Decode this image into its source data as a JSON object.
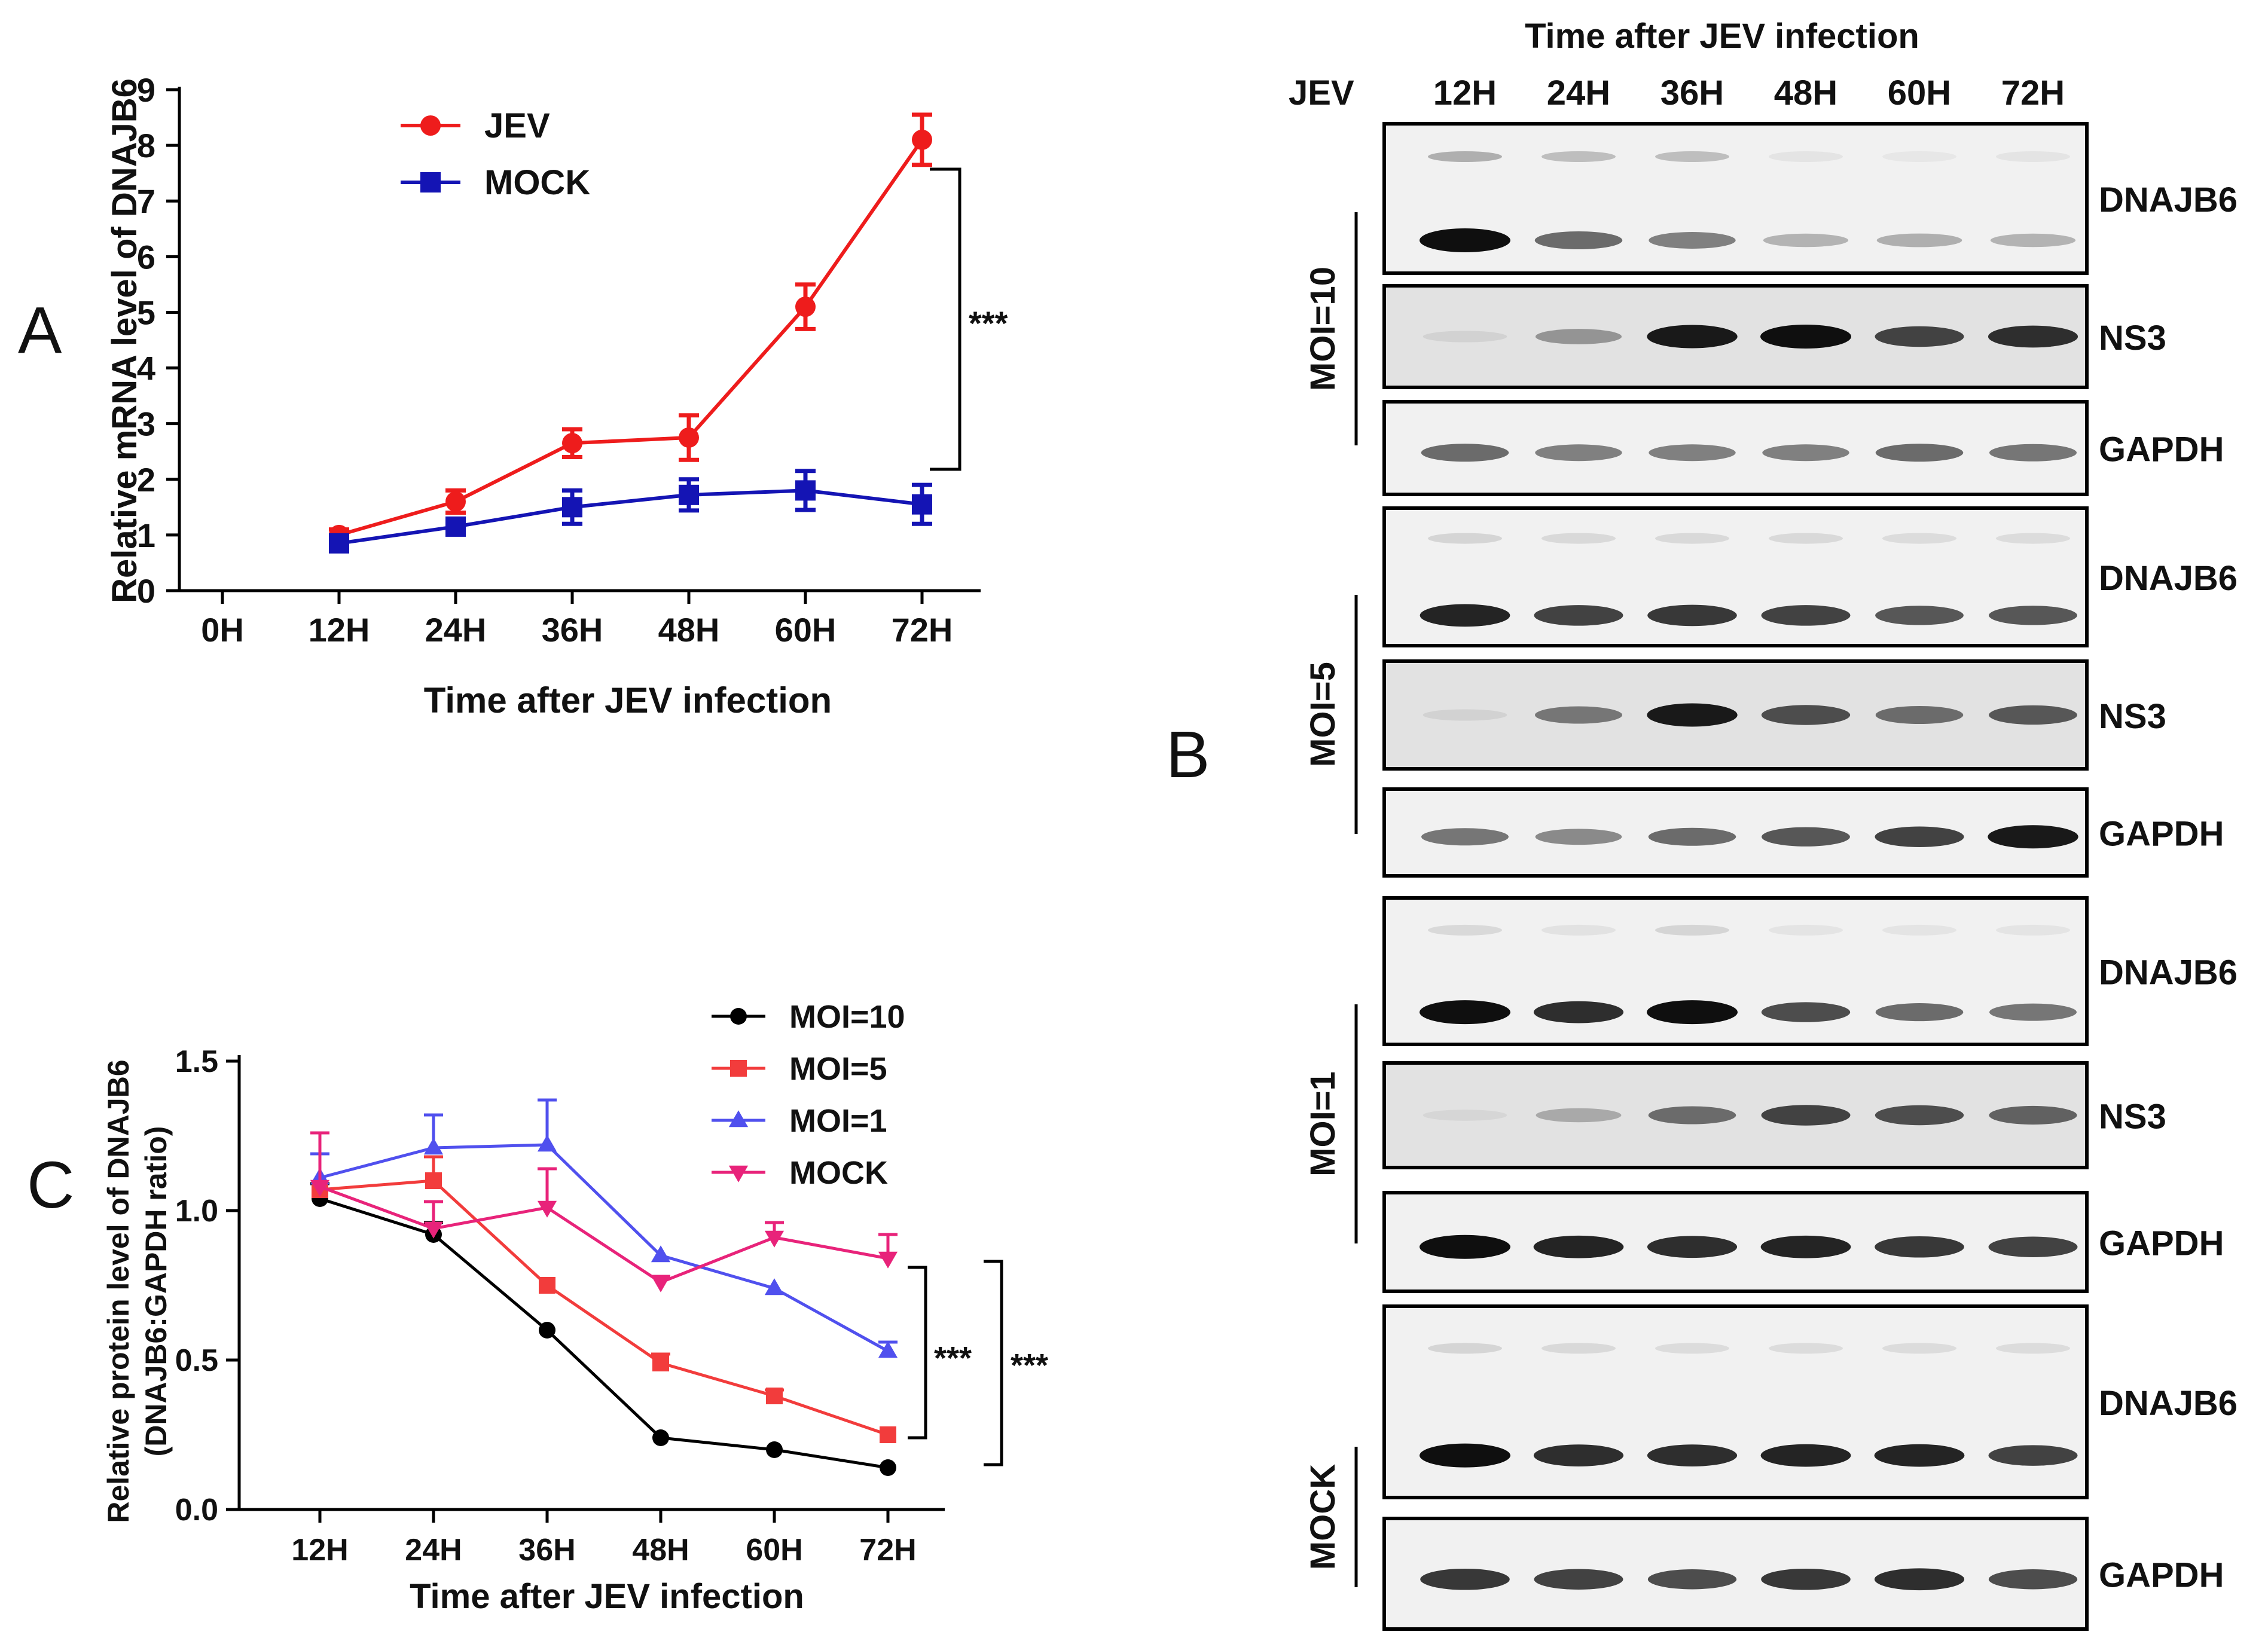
{
  "figure": {
    "panel_letters": [
      "A",
      "B",
      "C"
    ]
  },
  "chart_data": [
    {
      "panel": "A",
      "type": "line",
      "title": "",
      "xlabel": "Time after JEV infection",
      "ylabel": "Relative  mRNA level of DNAJB6",
      "categories": [
        "0H",
        "12H",
        "24H",
        "36H",
        "48H",
        "60H",
        "72H"
      ],
      "y_ticks": [
        "0",
        "1",
        "2",
        "3",
        "4",
        "5",
        "6",
        "7",
        "8",
        "9"
      ],
      "ylim": [
        0,
        9
      ],
      "legend_position": "top-left",
      "significance": "***",
      "colors": {
        "JEV": "#ee1c1c",
        "MOCK": "#1414b4"
      },
      "series": [
        {
          "name": "JEV",
          "marker": "circle",
          "x": [
            "12H",
            "24H",
            "36H",
            "48H",
            "60H",
            "72H"
          ],
          "values": [
            1.0,
            1.6,
            2.65,
            2.75,
            5.1,
            8.1
          ],
          "errors": [
            0.1,
            0.2,
            0.25,
            0.4,
            0.4,
            0.45
          ]
        },
        {
          "name": "MOCK",
          "marker": "square",
          "x": [
            "12H",
            "24H",
            "36H",
            "48H",
            "60H",
            "72H"
          ],
          "values": [
            0.85,
            1.15,
            1.5,
            1.72,
            1.8,
            1.55
          ],
          "errors": [
            0.1,
            0.12,
            0.3,
            0.28,
            0.35,
            0.35
          ]
        }
      ]
    },
    {
      "panel": "B",
      "type": "blot",
      "header": "Time after JEV infection",
      "row_label_header": "JEV",
      "lanes": [
        "12H",
        "24H",
        "36H",
        "48H",
        "60H",
        "72H"
      ],
      "groups": [
        {
          "label": "MOI=10",
          "rows": [
            {
              "protein": "DNAJB6",
              "intensity": [
                1.0,
                0.55,
                0.45,
                0.2,
                0.22,
                0.2
              ],
              "upper_band": [
                0.4,
                0.3,
                0.3,
                0.05,
                0.03,
                0.05
              ]
            },
            {
              "protein": "NS3",
              "intensity": [
                0.05,
                0.35,
                0.95,
                1.0,
                0.75,
                0.85
              ]
            },
            {
              "protein": "GAPDH",
              "intensity": [
                0.55,
                0.45,
                0.45,
                0.45,
                0.55,
                0.5
              ]
            }
          ]
        },
        {
          "label": "MOI=5",
          "rows": [
            {
              "protein": "DNAJB6",
              "intensity": [
                0.9,
                0.75,
                0.8,
                0.75,
                0.65,
                0.65
              ],
              "upper_band": [
                0.15,
                0.12,
                0.12,
                0.12,
                0.1,
                0.1
              ]
            },
            {
              "protein": "NS3",
              "intensity": [
                0.05,
                0.5,
                0.95,
                0.7,
                0.55,
                0.65
              ]
            },
            {
              "protein": "GAPDH",
              "intensity": [
                0.5,
                0.4,
                0.55,
                0.65,
                0.75,
                0.95
              ]
            }
          ]
        },
        {
          "label": "MOI=1",
          "rows": [
            {
              "protein": "DNAJB6",
              "intensity": [
                1.0,
                0.85,
                1.0,
                0.7,
                0.55,
                0.5
              ],
              "upper_band": [
                0.12,
                0.06,
                0.15,
                0.05,
                0.05,
                0.05
              ]
            },
            {
              "protein": "NS3",
              "intensity": [
                0.03,
                0.25,
                0.55,
                0.75,
                0.7,
                0.6
              ]
            },
            {
              "protein": "GAPDH",
              "intensity": [
                1.0,
                0.9,
                0.85,
                0.9,
                0.8,
                0.75
              ]
            }
          ]
        },
        {
          "label": "MOCK",
          "rows": [
            {
              "protein": "DNAJB6",
              "intensity": [
                1.0,
                0.85,
                0.85,
                0.9,
                0.9,
                0.75
              ],
              "upper_band": [
                0.15,
                0.12,
                0.1,
                0.1,
                0.1,
                0.1
              ]
            },
            {
              "protein": "GAPDH",
              "intensity": [
                0.8,
                0.75,
                0.7,
                0.8,
                0.85,
                0.7
              ]
            }
          ]
        }
      ]
    },
    {
      "panel": "C",
      "type": "line",
      "title": "",
      "xlabel": "Time after JEV infection",
      "ylabel": "Relative protein  level of DNAJB6",
      "ylabel2": "(DNAJB6:GAPDH ratio)",
      "categories": [
        "12H",
        "24H",
        "36H",
        "48H",
        "60H",
        "72H"
      ],
      "y_ticks": [
        "0.0",
        "0.5",
        "1.0",
        "1.5"
      ],
      "ylim": [
        0,
        1.5
      ],
      "legend_position": "top-right",
      "significance": [
        "***",
        "***"
      ],
      "colors": {
        "MOI=10": "#000000",
        "MOI=5": "#f23c3c",
        "MOI=1": "#5050ee",
        "MOCK": "#e8237a"
      },
      "series": [
        {
          "name": "MOI=10",
          "marker": "circle",
          "values": [
            1.04,
            0.92,
            0.6,
            0.24,
            0.2,
            0.14
          ],
          "errors": [
            0.05,
            0.04,
            0,
            0,
            0,
            0
          ]
        },
        {
          "name": "MOI=5",
          "marker": "square",
          "values": [
            1.07,
            1.1,
            0.75,
            0.49,
            0.38,
            0.25
          ],
          "errors": [
            0.12,
            0.08,
            0,
            0.03,
            0.02,
            0
          ]
        },
        {
          "name": "MOI=1",
          "marker": "triangle-up",
          "values": [
            1.11,
            1.21,
            1.22,
            0.85,
            0.74,
            0.53
          ],
          "errors": [
            0.08,
            0.11,
            0.15,
            0,
            0,
            0.03
          ]
        },
        {
          "name": "MOCK",
          "marker": "triangle-down",
          "values": [
            1.08,
            0.94,
            1.01,
            0.76,
            0.91,
            0.84
          ],
          "errors": [
            0.18,
            0.09,
            0.13,
            0.02,
            0.05,
            0.08
          ]
        }
      ]
    }
  ]
}
